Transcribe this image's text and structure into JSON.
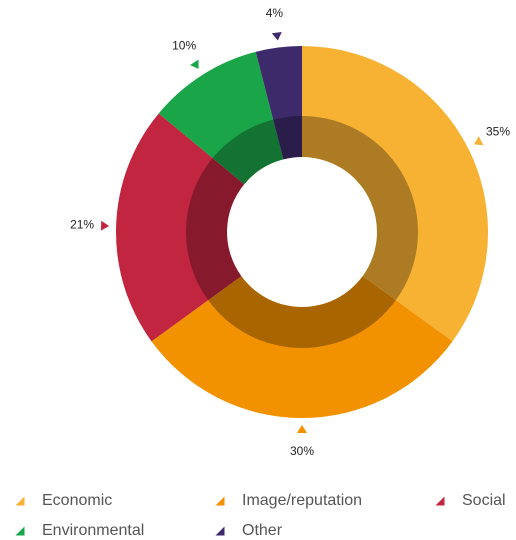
{
  "chart_data": {
    "type": "donut",
    "categories": [
      "Economic",
      "Image/reputation",
      "Social",
      "Environmental",
      "Other"
    ],
    "values": [
      35,
      30,
      21,
      10,
      4
    ],
    "value_labels": [
      "35%",
      "30%",
      "21%",
      "10%",
      "4%"
    ],
    "colors": [
      "#f7b133",
      "#f39200",
      "#c1253f",
      "#1aa548",
      "#3d2a6b"
    ],
    "legend": "bottom"
  }
}
